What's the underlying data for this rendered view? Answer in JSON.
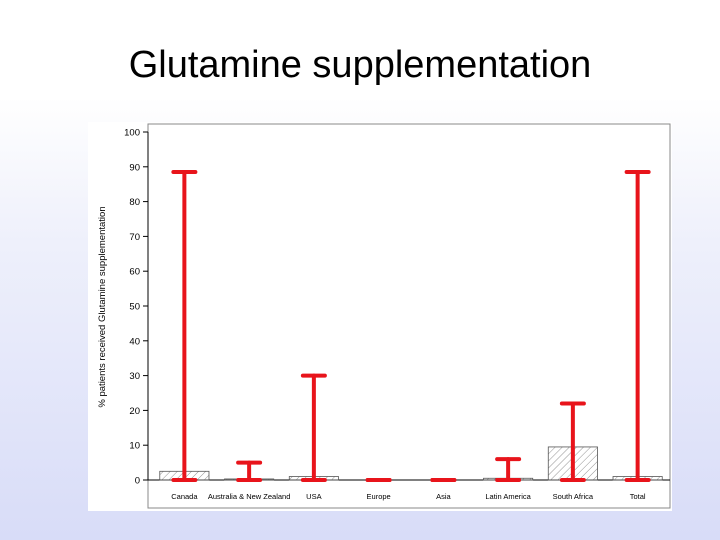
{
  "slide": {
    "title": "Glutamine supplementation"
  },
  "colors": {
    "whisker": "#e8141b",
    "bar_stroke": "#555555",
    "hatch": "#777777",
    "axis": "#000000"
  },
  "chart_data": {
    "type": "bar",
    "ylabel": "% patients received Glutamine supplementation",
    "xlabel": "",
    "ylim": [
      0,
      100
    ],
    "yticks": [
      "0",
      "10",
      "20",
      "30",
      "40",
      "50",
      "60",
      "70",
      "80",
      "90",
      "100"
    ],
    "categories": [
      "Canada",
      "Australia & New Zealand",
      "USA",
      "Europe",
      "Asia",
      "Latin America",
      "South Africa",
      "Total"
    ],
    "values": [
      2.5,
      0.3,
      1,
      0,
      0,
      0.5,
      9.5,
      1
    ],
    "error_low": [
      0,
      0,
      0,
      0,
      0,
      0,
      0,
      0
    ],
    "error_high": [
      88.5,
      5,
      30,
      0,
      0,
      6,
      22,
      88.5
    ],
    "grid": false
  }
}
